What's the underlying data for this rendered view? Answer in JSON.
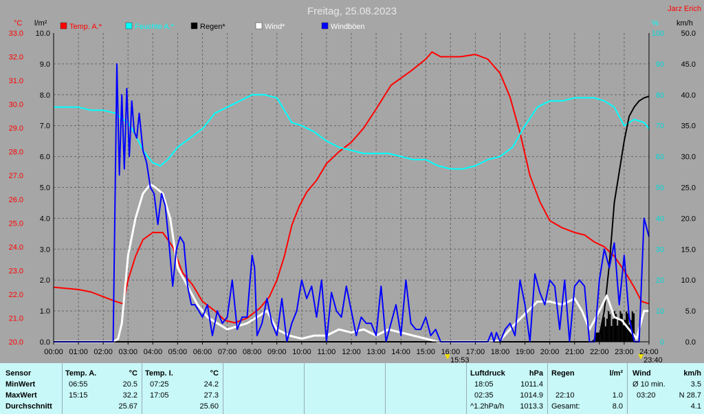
{
  "chart_data": {
    "type": "line",
    "title": "Freitag, 25.08.2023",
    "station": "Jarz Erich",
    "x_ticks": [
      "00:00",
      "01:00",
      "02:00",
      "03:00",
      "04:00",
      "05:00",
      "06:00",
      "07:00",
      "08:00",
      "09:00",
      "10:00",
      "11:00",
      "12:00",
      "13:00",
      "14:00",
      "15:00",
      "16:00",
      "17:00",
      "18:00",
      "19:00",
      "20:00",
      "21:00",
      "22:00",
      "23:00",
      "24:00"
    ],
    "x_markers": [
      {
        "label": "15:53",
        "hour": 15.88
      },
      {
        "label": "23:40",
        "hour": 23.67
      }
    ],
    "axes": {
      "temp": {
        "unit": "°C",
        "ylim": [
          20,
          33
        ],
        "ticks": [
          "20.0",
          "21.0",
          "22.0",
          "23.0",
          "24.0",
          "25.0",
          "26.0",
          "27.0",
          "28.0",
          "29.0",
          "30.0",
          "31.0",
          "32.0",
          "33.0"
        ],
        "color": "#ff0000"
      },
      "rain": {
        "unit": "l/m²",
        "ylim": [
          0,
          10
        ],
        "ticks": [
          "0.0",
          "1.0",
          "2.0",
          "3.0",
          "4.0",
          "5.0",
          "6.0",
          "7.0",
          "8.0",
          "9.0",
          "10.0"
        ],
        "color": "#000000"
      },
      "humidity": {
        "unit": "%",
        "ylim": [
          0,
          100
        ],
        "ticks": [
          "0",
          "10",
          "20",
          "30",
          "40",
          "50",
          "60",
          "70",
          "80",
          "90",
          "100"
        ],
        "color": "#00d8d8"
      },
      "wind": {
        "unit": "km/h",
        "ylim": [
          0,
          50
        ],
        "ticks": [
          "0.0",
          "5.0",
          "10.0",
          "15.0",
          "20.0",
          "25.0",
          "30.0",
          "35.0",
          "40.0",
          "45.0",
          "50.0"
        ],
        "color": "#000000"
      }
    },
    "grid": true,
    "legend": [
      {
        "name": "Temp. A.*",
        "color": "#ff0000"
      },
      {
        "name": "Feuchte A.*",
        "color": "#00ffff"
      },
      {
        "name": "Regen*",
        "color": "#000000"
      },
      {
        "name": "Wind*",
        "color": "#ffffff"
      },
      {
        "name": "Windböen",
        "color": "#0000ff"
      }
    ],
    "series": [
      {
        "name": "Temp. A.*",
        "axis": "temp",
        "color": "#ff0000",
        "x": [
          0,
          1,
          1.5,
          2,
          2.5,
          2.8,
          3,
          3.3,
          3.6,
          4,
          4.4,
          4.8,
          5.2,
          5.6,
          6,
          6.5,
          6.9,
          7.3,
          7.8,
          8.3,
          8.7,
          9,
          9.3,
          9.6,
          9.9,
          10.2,
          10.6,
          11,
          11.5,
          12,
          12.5,
          13,
          13.3,
          13.6,
          14,
          14.4,
          15,
          15.25,
          15.6,
          16,
          16.4,
          17,
          17.5,
          18,
          18.4,
          18.8,
          19.2,
          19.6,
          20,
          20.5,
          21,
          21.4,
          21.8,
          22.2,
          22.6,
          23,
          23.4,
          23.7,
          24
        ],
        "y": [
          22.3,
          22.2,
          22.1,
          21.9,
          21.7,
          21.6,
          22.6,
          23.6,
          24.3,
          24.6,
          24.6,
          24.0,
          22.9,
          22.4,
          21.7,
          21.3,
          20.9,
          20.8,
          21.0,
          21.4,
          21.9,
          22.6,
          23.6,
          24.9,
          25.7,
          26.3,
          26.8,
          27.5,
          28.0,
          28.4,
          29.0,
          29.8,
          30.3,
          30.8,
          31.1,
          31.4,
          31.9,
          32.2,
          32.0,
          32.0,
          32.0,
          32.1,
          31.9,
          31.3,
          30.3,
          28.8,
          27.0,
          25.9,
          25.1,
          24.8,
          24.6,
          24.5,
          24.2,
          24.0,
          23.6,
          23.0,
          22.3,
          21.7,
          21.6
        ]
      },
      {
        "name": "Feuchte A.*",
        "axis": "humidity",
        "color": "#00ffff",
        "x": [
          0,
          1,
          1.5,
          2,
          2.5,
          2.8,
          3,
          3.3,
          3.6,
          4,
          4.3,
          4.6,
          5,
          5.5,
          6,
          6.5,
          7,
          7.5,
          8,
          8.5,
          9,
          9.3,
          9.6,
          10,
          10.5,
          11,
          11.5,
          12,
          12.5,
          13,
          13.5,
          14,
          14.5,
          15,
          15.5,
          16,
          16.5,
          17,
          17.5,
          18,
          18.5,
          19,
          19.5,
          20,
          20.5,
          21,
          21.4,
          21.8,
          22.2,
          22.6,
          23,
          23.4,
          23.8,
          24
        ],
        "y": [
          76,
          76,
          75,
          75,
          74,
          72,
          71,
          67,
          62,
          58,
          57,
          59,
          63,
          66,
          69,
          74,
          76,
          78,
          80,
          80,
          79,
          75,
          71,
          70,
          68,
          65,
          63,
          62,
          61,
          61,
          61,
          60,
          59,
          59,
          57,
          56,
          56,
          57,
          59,
          60,
          63,
          70,
          76,
          78,
          78,
          79,
          79,
          79,
          78,
          76,
          70,
          72,
          71,
          69
        ]
      },
      {
        "name": "Regen*",
        "axis": "rain",
        "color": "#000000",
        "x": [
          0,
          21.7,
          22,
          22.2,
          22.4,
          22.6,
          22.8,
          23,
          23.2,
          23.4,
          23.6,
          23.8,
          24
        ],
        "y": [
          0,
          0,
          0.2,
          1.0,
          2.5,
          4.5,
          5.5,
          6.5,
          7.3,
          7.6,
          7.8,
          7.9,
          7.95
        ]
      },
      {
        "name": "Wind*",
        "axis": "wind",
        "color": "#ffffff",
        "x": [
          0,
          2.4,
          2.6,
          2.75,
          3,
          3.3,
          3.6,
          3.9,
          4.1,
          4.4,
          4.7,
          5,
          5.4,
          5.8,
          6.2,
          6.6,
          7,
          7.4,
          7.8,
          8.2,
          8.6,
          9,
          9.5,
          10,
          10.5,
          11,
          11.5,
          12,
          12.5,
          13,
          13.5,
          14,
          14.5,
          15,
          15.5,
          16,
          16.5,
          17,
          17.5,
          18,
          18.5,
          19,
          19.5,
          20,
          20.5,
          21,
          21.3,
          21.6,
          22,
          22.3,
          22.6,
          22.9,
          23.2,
          23.5,
          23.8,
          24
        ],
        "y": [
          0,
          0,
          0.5,
          3,
          14,
          20,
          24,
          25.5,
          25,
          24,
          20,
          12,
          9,
          6,
          4,
          3,
          2,
          2.5,
          3,
          4,
          5,
          2,
          1,
          0.5,
          1,
          1,
          2,
          1.5,
          2,
          1,
          2,
          1.5,
          1,
          0.5,
          0,
          0,
          0,
          0,
          0,
          0.2,
          2.5,
          4.5,
          6.5,
          6.5,
          6,
          7,
          5,
          2,
          5,
          7.5,
          4,
          3.5,
          2,
          0.5,
          5,
          5
        ]
      },
      {
        "name": "Windböen",
        "axis": "wind",
        "color": "#0000ff",
        "x": [
          0,
          2.4,
          2.55,
          2.65,
          2.75,
          2.85,
          2.95,
          3.05,
          3.15,
          3.25,
          3.35,
          3.45,
          3.6,
          3.75,
          3.9,
          4.05,
          4.2,
          4.35,
          4.5,
          4.65,
          4.8,
          4.95,
          5.1,
          5.25,
          5.4,
          5.55,
          5.7,
          5.85,
          6,
          6.2,
          6.4,
          6.6,
          6.8,
          7,
          7.2,
          7.4,
          7.6,
          7.8,
          8,
          8.1,
          8.2,
          8.4,
          8.6,
          8.8,
          9,
          9.2,
          9.4,
          9.6,
          9.8,
          10,
          10.2,
          10.4,
          10.6,
          10.8,
          11,
          11.2,
          11.4,
          11.6,
          11.8,
          12,
          12.2,
          12.4,
          12.6,
          12.8,
          13,
          13.2,
          13.4,
          13.6,
          13.8,
          14,
          14.2,
          14.4,
          14.6,
          14.8,
          15,
          15.2,
          15.4,
          15.6,
          15.8,
          16,
          16.5,
          17,
          17.5,
          17.65,
          17.75,
          17.85,
          18,
          18.2,
          18.4,
          18.6,
          18.8,
          19,
          19.2,
          19.4,
          19.6,
          19.8,
          20,
          20.2,
          20.4,
          20.6,
          20.8,
          21,
          21.2,
          21.4,
          21.6,
          21.8,
          22,
          22.2,
          22.4,
          22.6,
          22.8,
          23,
          23.2,
          23.4,
          23.6,
          23.8,
          24
        ],
        "y": [
          0,
          0,
          45,
          27,
          40,
          28,
          41,
          30,
          39,
          34,
          33,
          37,
          31,
          29,
          25,
          24,
          19,
          24,
          22,
          16,
          9,
          15,
          17,
          16,
          9,
          6,
          6,
          5,
          4,
          6,
          1,
          5,
          3,
          4,
          10,
          2,
          4,
          4,
          14,
          12,
          1,
          3,
          7,
          3,
          1,
          7,
          0,
          3,
          5,
          10,
          7,
          9,
          4,
          10,
          0,
          8,
          5,
          4,
          9,
          5,
          1,
          4,
          3,
          3,
          1,
          9,
          0,
          3,
          6,
          1,
          10,
          3,
          2,
          2,
          4,
          1,
          2,
          0,
          0,
          0,
          0,
          0,
          0,
          1.5,
          0,
          1.5,
          0,
          2,
          3,
          1,
          10,
          6,
          0,
          11,
          8,
          6,
          10,
          9,
          2,
          10,
          0,
          9,
          10,
          9,
          0,
          0,
          10,
          15,
          12,
          16,
          6,
          14,
          4,
          0,
          0,
          20,
          17
        ]
      }
    ]
  },
  "stats": {
    "sensor": {
      "header": "Sensor",
      "rows": [
        "MinWert",
        "MaxWert",
        "Durchschnitt"
      ]
    },
    "temp_a": {
      "header": "Temp. A.",
      "unit": "°C",
      "rows": [
        {
          "time": "06:55",
          "value": "20.5"
        },
        {
          "time": "15:15",
          "value": "32.2"
        },
        {
          "time": "",
          "value": "25.67"
        }
      ]
    },
    "temp_i": {
      "header": "Temp. I.",
      "unit": "°C",
      "rows": [
        {
          "time": "07:25",
          "value": "24.2"
        },
        {
          "time": "17:05",
          "value": "27.3"
        },
        {
          "time": "",
          "value": "25.60"
        }
      ]
    },
    "pressure": {
      "header": "Luftdruck",
      "unit": "hPa",
      "rows": [
        {
          "time": "18:05",
          "value": "1011.4"
        },
        {
          "time": "02:35",
          "value": "1014.9"
        },
        {
          "time": "^1.2hPa/h",
          "value": "1013.3"
        }
      ]
    },
    "rain": {
      "header": "Regen",
      "unit": "l/m²",
      "rows": [
        {
          "time": "",
          "value": ""
        },
        {
          "time": "22:10",
          "value": "1.0"
        },
        {
          "time": "Gesamt:",
          "value": "8.0"
        }
      ]
    },
    "wind": {
      "header": "Wind",
      "unit": "km/h",
      "rows": [
        {
          "time": "Ø 10 min.",
          "value": "3.5"
        },
        {
          "time": "03:20",
          "value": "N 28.7"
        },
        {
          "time": "",
          "value": "4.1"
        }
      ]
    }
  }
}
